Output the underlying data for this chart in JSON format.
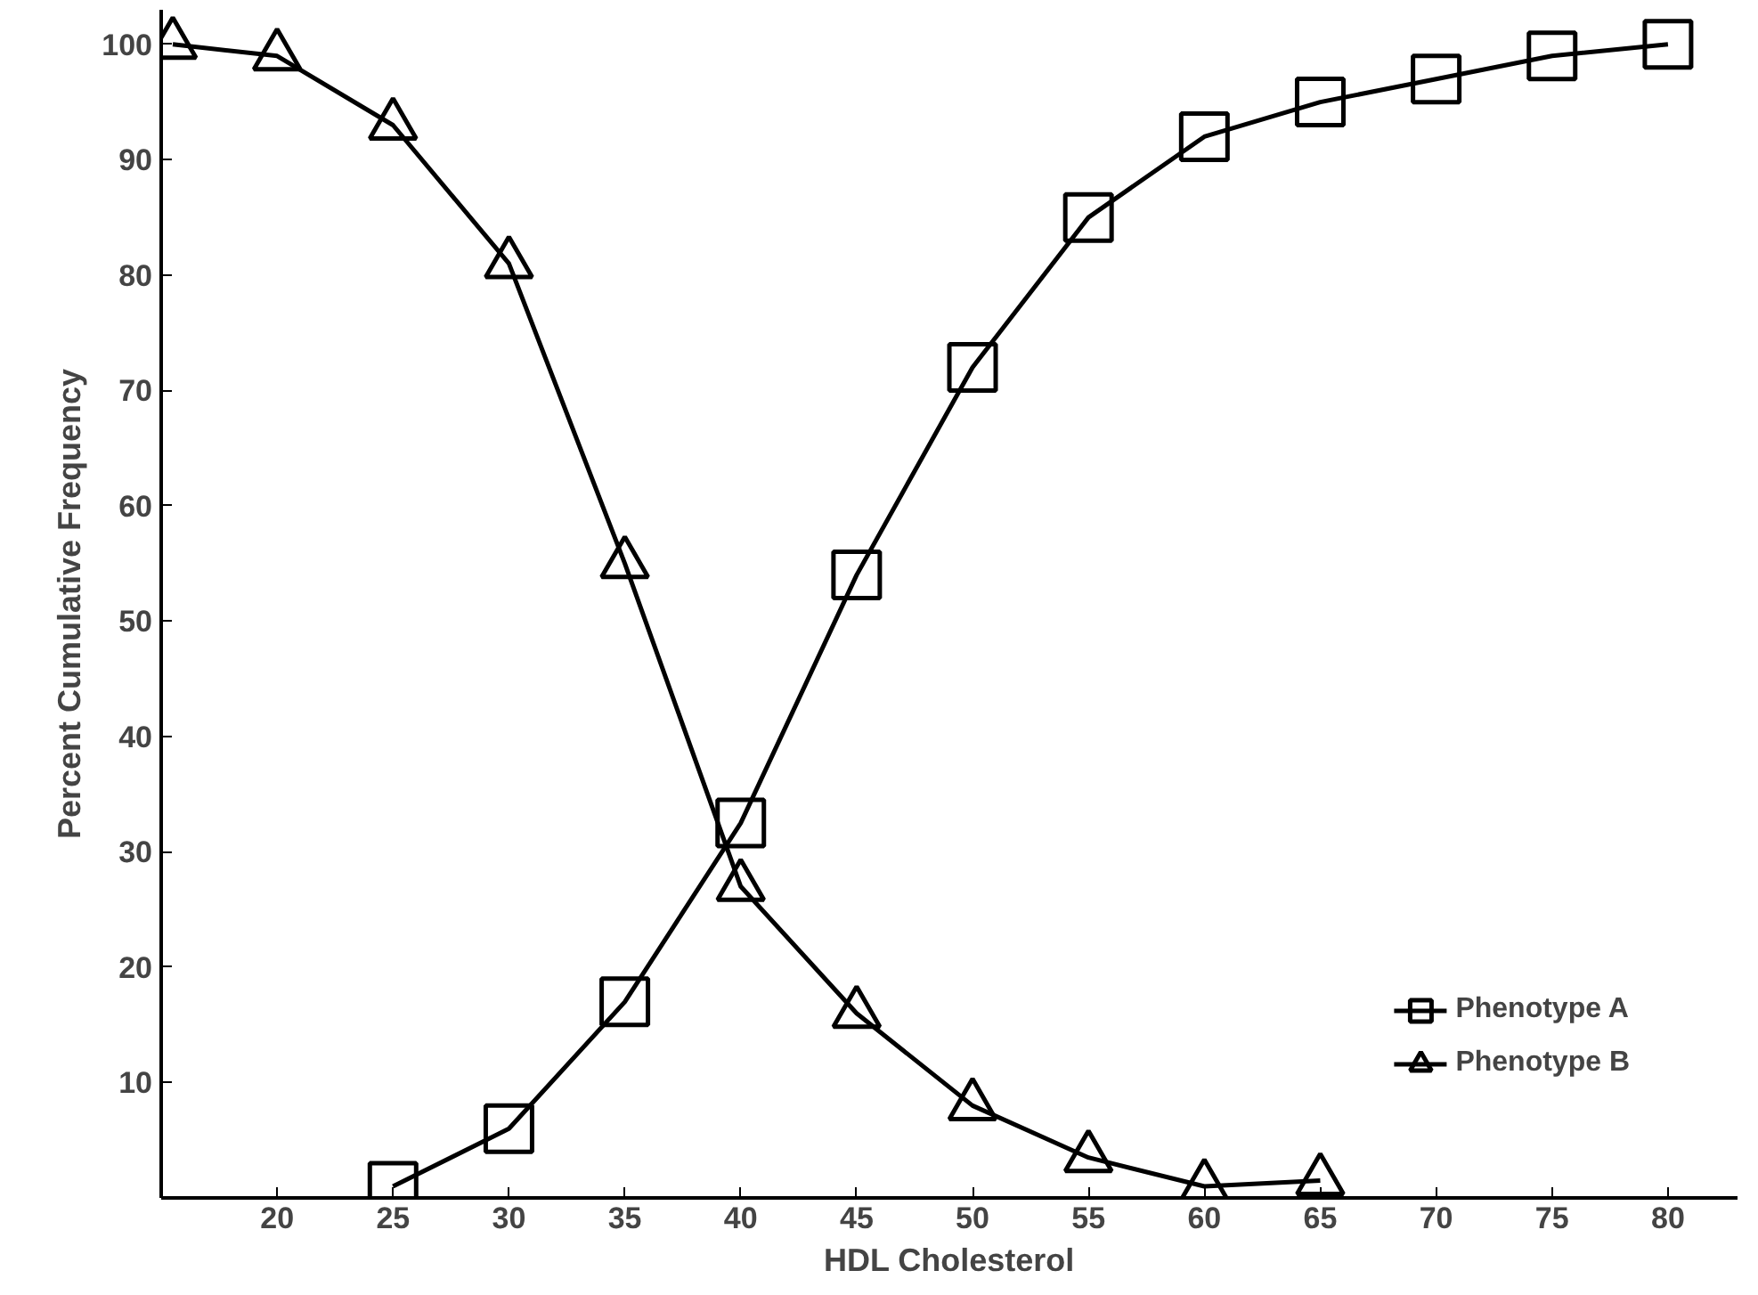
{
  "chart_data": {
    "type": "line",
    "xlabel": "HDL Cholesterol",
    "ylabel": "Percent Cumulative Frequency",
    "xlim": [
      15,
      83
    ],
    "ylim": [
      0,
      103
    ],
    "xticks": [
      20,
      25,
      30,
      35,
      40,
      45,
      50,
      55,
      60,
      65,
      70,
      75,
      80
    ],
    "yticks": [
      10,
      20,
      30,
      40,
      50,
      60,
      70,
      80,
      90,
      100
    ],
    "grid": false,
    "legend": "bottom right",
    "series": [
      {
        "name": "Phenotype A",
        "color": "#000000",
        "marker": "square",
        "x": [
          25,
          30,
          35,
          40,
          45,
          50,
          55,
          60,
          65,
          70,
          75,
          80
        ],
        "values": [
          1,
          6,
          17,
          32.5,
          54,
          72,
          85,
          92,
          95,
          97,
          99,
          100
        ]
      },
      {
        "name": "Phenotype B",
        "color": "#000000",
        "marker": "triangle",
        "x": [
          15.5,
          20,
          25,
          30,
          35,
          40,
          45,
          50,
          55,
          60,
          65
        ],
        "values": [
          100,
          99,
          93,
          81,
          55,
          27,
          16,
          8,
          3.5,
          1,
          1.5
        ]
      }
    ]
  }
}
